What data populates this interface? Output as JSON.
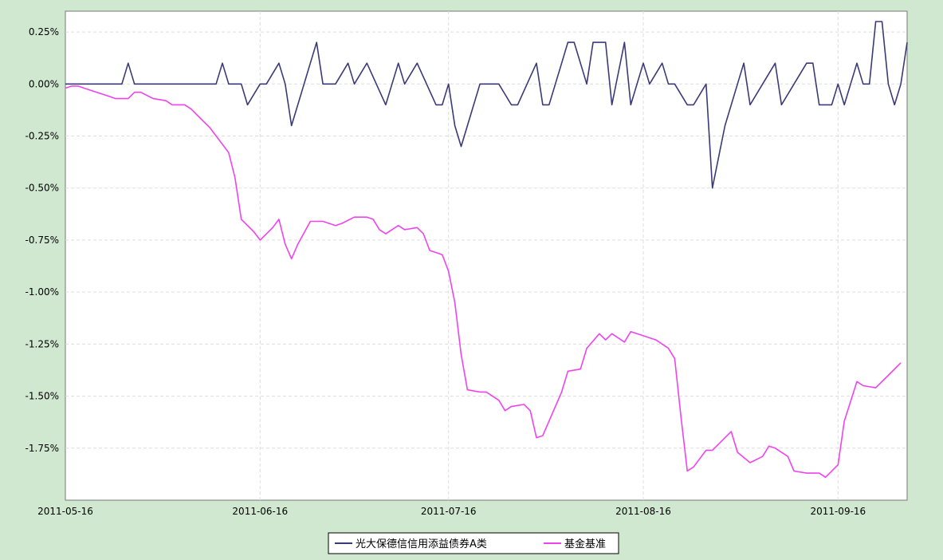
{
  "chart_data": {
    "type": "line",
    "title": "",
    "xlabel": "",
    "ylabel": "",
    "x_tick_labels": [
      "2011-05-16",
      "2011-06-16",
      "2011-07-16",
      "2011-08-16",
      "2011-09-16"
    ],
    "y_tick_labels": [
      "0.25%",
      "0.00%",
      "-0.25%",
      "-0.50%",
      "-0.75%",
      "-1.00%",
      "-1.25%",
      "-1.50%",
      "-1.75%"
    ],
    "y_ticks": [
      0.25,
      0,
      -0.25,
      -0.5,
      -0.75,
      -1.0,
      -1.25,
      -1.5,
      -1.75
    ],
    "ylim": [
      -2.0,
      0.35
    ],
    "xlim": [
      "2011-05-16",
      "2011-09-27"
    ],
    "grid": true,
    "legend_position": "bottom-center",
    "colors": {
      "fund": "#3a3a78",
      "benchmark": "#ee44ee",
      "plot_bg": "#ffffff",
      "outer_bg": "#cfe8cf",
      "grid": "#dddddd"
    },
    "series": [
      {
        "name": "光大保德信信用添益债券A类",
        "color": "#3a3a78",
        "points": [
          [
            "2011-05-16",
            0.0
          ],
          [
            "2011-05-23",
            0.0
          ],
          [
            "2011-05-25",
            0.0
          ],
          [
            "2011-05-26",
            0.1
          ],
          [
            "2011-05-27",
            0.0
          ],
          [
            "2011-06-03",
            0.0
          ],
          [
            "2011-06-09",
            0.0
          ],
          [
            "2011-06-10",
            0.1
          ],
          [
            "2011-06-11",
            0.0
          ],
          [
            "2011-06-13",
            0.0
          ],
          [
            "2011-06-14",
            -0.1
          ],
          [
            "2011-06-16",
            0.0
          ],
          [
            "2011-06-17",
            0.0
          ],
          [
            "2011-06-19",
            0.1
          ],
          [
            "2011-06-20",
            0.0
          ],
          [
            "2011-06-21",
            -0.2
          ],
          [
            "2011-06-22",
            -0.1
          ],
          [
            "2011-06-24",
            0.1
          ],
          [
            "2011-06-25",
            0.2
          ],
          [
            "2011-06-26",
            0.0
          ],
          [
            "2011-06-28",
            0.0
          ],
          [
            "2011-06-30",
            0.1
          ],
          [
            "2011-07-01",
            0.0
          ],
          [
            "2011-07-03",
            0.1
          ],
          [
            "2011-07-06",
            -0.1
          ],
          [
            "2011-07-08",
            0.1
          ],
          [
            "2011-07-09",
            0.0
          ],
          [
            "2011-07-11",
            0.1
          ],
          [
            "2011-07-14",
            -0.1
          ],
          [
            "2011-07-15",
            -0.1
          ],
          [
            "2011-07-16",
            0.0
          ],
          [
            "2011-07-17",
            -0.2
          ],
          [
            "2011-07-18",
            -0.3
          ],
          [
            "2011-07-19",
            -0.2
          ],
          [
            "2011-07-21",
            0.0
          ],
          [
            "2011-07-24",
            0.0
          ],
          [
            "2011-07-26",
            -0.1
          ],
          [
            "2011-07-27",
            -0.1
          ],
          [
            "2011-07-30",
            0.1
          ],
          [
            "2011-07-31",
            -0.1
          ],
          [
            "2011-08-01",
            -0.1
          ],
          [
            "2011-08-03",
            0.1
          ],
          [
            "2011-08-04",
            0.2
          ],
          [
            "2011-08-05",
            0.2
          ],
          [
            "2011-08-07",
            0.0
          ],
          [
            "2011-08-08",
            0.2
          ],
          [
            "2011-08-10",
            0.2
          ],
          [
            "2011-08-11",
            -0.1
          ],
          [
            "2011-08-13",
            0.2
          ],
          [
            "2011-08-14",
            -0.1
          ],
          [
            "2011-08-16",
            0.1
          ],
          [
            "2011-08-17",
            0.0
          ],
          [
            "2011-08-19",
            0.1
          ],
          [
            "2011-08-20",
            0.0
          ],
          [
            "2011-08-21",
            0.0
          ],
          [
            "2011-08-23",
            -0.1
          ],
          [
            "2011-08-24",
            -0.1
          ],
          [
            "2011-08-26",
            0.0
          ],
          [
            "2011-08-27",
            -0.5
          ],
          [
            "2011-08-29",
            -0.2
          ],
          [
            "2011-08-31",
            0.0
          ],
          [
            "2011-09-01",
            0.1
          ],
          [
            "2011-09-02",
            -0.1
          ],
          [
            "2011-09-04",
            0.0
          ],
          [
            "2011-09-06",
            0.1
          ],
          [
            "2011-09-07",
            -0.1
          ],
          [
            "2011-09-09",
            0.0
          ],
          [
            "2011-09-11",
            0.1
          ],
          [
            "2011-09-12",
            0.1
          ],
          [
            "2011-09-13",
            -0.1
          ],
          [
            "2011-09-15",
            -0.1
          ],
          [
            "2011-09-16",
            0.0
          ],
          [
            "2011-09-17",
            -0.1
          ],
          [
            "2011-09-19",
            0.1
          ],
          [
            "2011-09-20",
            0.0
          ],
          [
            "2011-09-21",
            0.0
          ],
          [
            "2011-09-22",
            0.3
          ],
          [
            "2011-09-23",
            0.3
          ],
          [
            "2011-09-24",
            0.0
          ],
          [
            "2011-09-25",
            -0.1
          ],
          [
            "2011-09-26",
            0.0
          ],
          [
            "2011-09-27",
            0.2
          ]
        ]
      },
      {
        "name": "基金基准",
        "color": "#ee44ee",
        "points": [
          [
            "2011-05-16",
            -0.02
          ],
          [
            "2011-05-17",
            -0.01
          ],
          [
            "2011-05-18",
            -0.01
          ],
          [
            "2011-05-20",
            -0.03
          ],
          [
            "2011-05-23",
            -0.06
          ],
          [
            "2011-05-24",
            -0.07
          ],
          [
            "2011-05-26",
            -0.07
          ],
          [
            "2011-05-27",
            -0.04
          ],
          [
            "2011-05-28",
            -0.04
          ],
          [
            "2011-05-30",
            -0.07
          ],
          [
            "2011-06-01",
            -0.08
          ],
          [
            "2011-06-02",
            -0.1
          ],
          [
            "2011-06-04",
            -0.1
          ],
          [
            "2011-06-05",
            -0.12
          ],
          [
            "2011-06-07",
            -0.18
          ],
          [
            "2011-06-08",
            -0.21
          ],
          [
            "2011-06-10",
            -0.29
          ],
          [
            "2011-06-11",
            -0.33
          ],
          [
            "2011-06-12",
            -0.45
          ],
          [
            "2011-06-13",
            -0.65
          ],
          [
            "2011-06-15",
            -0.71
          ],
          [
            "2011-06-16",
            -0.75
          ],
          [
            "2011-06-18",
            -0.69
          ],
          [
            "2011-06-19",
            -0.65
          ],
          [
            "2011-06-20",
            -0.77
          ],
          [
            "2011-06-21",
            -0.84
          ],
          [
            "2011-06-22",
            -0.77
          ],
          [
            "2011-06-24",
            -0.66
          ],
          [
            "2011-06-26",
            -0.66
          ],
          [
            "2011-06-28",
            -0.68
          ],
          [
            "2011-06-29",
            -0.67
          ],
          [
            "2011-07-01",
            -0.64
          ],
          [
            "2011-07-03",
            -0.64
          ],
          [
            "2011-07-04",
            -0.65
          ],
          [
            "2011-07-05",
            -0.7
          ],
          [
            "2011-07-06",
            -0.72
          ],
          [
            "2011-07-08",
            -0.68
          ],
          [
            "2011-07-09",
            -0.7
          ],
          [
            "2011-07-11",
            -0.69
          ],
          [
            "2011-07-12",
            -0.72
          ],
          [
            "2011-07-13",
            -0.8
          ],
          [
            "2011-07-15",
            -0.82
          ],
          [
            "2011-07-16",
            -0.9
          ],
          [
            "2011-07-17",
            -1.05
          ],
          [
            "2011-07-18",
            -1.3
          ],
          [
            "2011-07-19",
            -1.47
          ],
          [
            "2011-07-21",
            -1.48
          ],
          [
            "2011-07-22",
            -1.48
          ],
          [
            "2011-07-24",
            -1.52
          ],
          [
            "2011-07-25",
            -1.57
          ],
          [
            "2011-07-26",
            -1.55
          ],
          [
            "2011-07-28",
            -1.54
          ],
          [
            "2011-07-29",
            -1.57
          ],
          [
            "2011-07-30",
            -1.7
          ],
          [
            "2011-07-31",
            -1.69
          ],
          [
            "2011-08-02",
            -1.55
          ],
          [
            "2011-08-03",
            -1.48
          ],
          [
            "2011-08-04",
            -1.38
          ],
          [
            "2011-08-06",
            -1.37
          ],
          [
            "2011-08-07",
            -1.27
          ],
          [
            "2011-08-09",
            -1.2
          ],
          [
            "2011-08-10",
            -1.23
          ],
          [
            "2011-08-11",
            -1.2
          ],
          [
            "2011-08-13",
            -1.24
          ],
          [
            "2011-08-14",
            -1.19
          ],
          [
            "2011-08-16",
            -1.21
          ],
          [
            "2011-08-18",
            -1.23
          ],
          [
            "2011-08-20",
            -1.27
          ],
          [
            "2011-08-21",
            -1.32
          ],
          [
            "2011-08-22",
            -1.6
          ],
          [
            "2011-08-23",
            -1.86
          ],
          [
            "2011-08-24",
            -1.84
          ],
          [
            "2011-08-26",
            -1.76
          ],
          [
            "2011-08-27",
            -1.76
          ],
          [
            "2011-08-29",
            -1.7
          ],
          [
            "2011-08-30",
            -1.67
          ],
          [
            "2011-08-31",
            -1.77
          ],
          [
            "2011-09-02",
            -1.82
          ],
          [
            "2011-09-04",
            -1.79
          ],
          [
            "2011-09-05",
            -1.74
          ],
          [
            "2011-09-06",
            -1.75
          ],
          [
            "2011-09-08",
            -1.79
          ],
          [
            "2011-09-09",
            -1.86
          ],
          [
            "2011-09-11",
            -1.87
          ],
          [
            "2011-09-13",
            -1.87
          ],
          [
            "2011-09-14",
            -1.89
          ],
          [
            "2011-09-16",
            -1.83
          ],
          [
            "2011-09-17",
            -1.62
          ],
          [
            "2011-09-19",
            -1.43
          ],
          [
            "2011-09-20",
            -1.45
          ],
          [
            "2011-09-22",
            -1.46
          ],
          [
            "2011-09-24",
            -1.4
          ],
          [
            "2011-09-26",
            -1.34
          ]
        ]
      }
    ]
  }
}
